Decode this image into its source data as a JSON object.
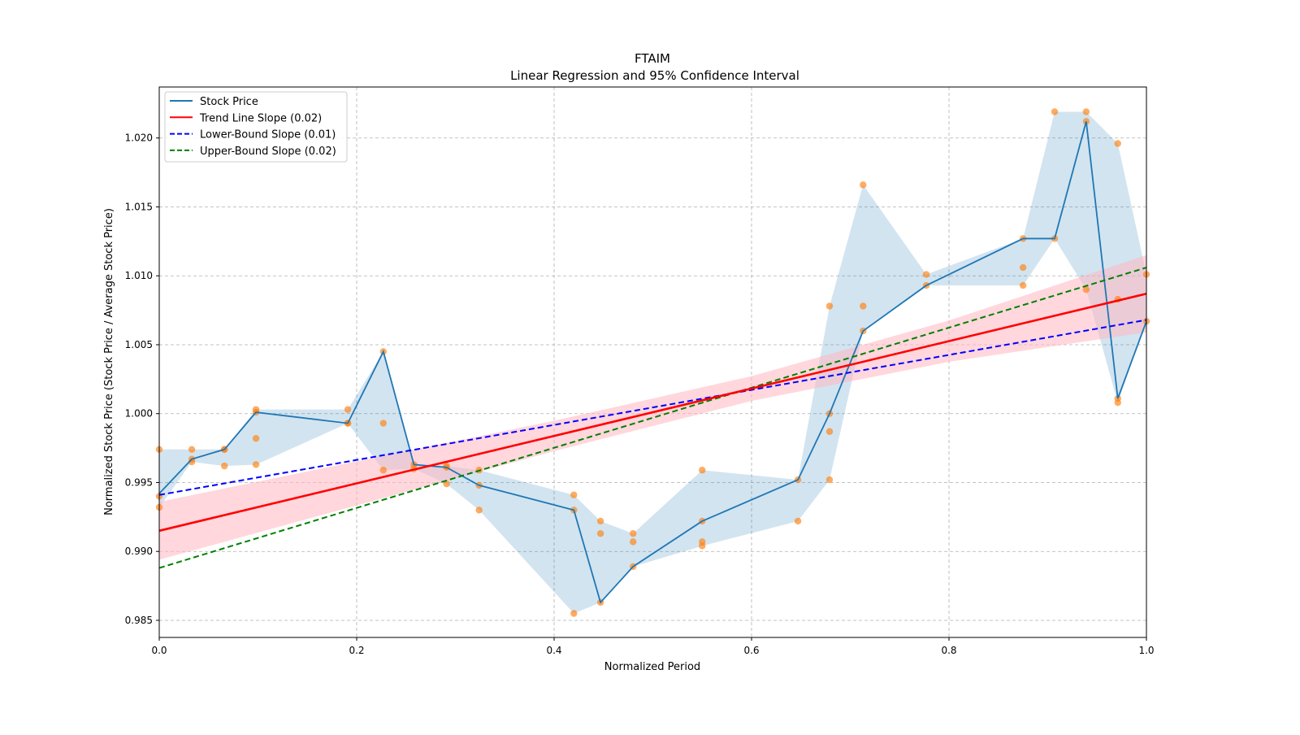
{
  "chart_data": {
    "type": "line",
    "title": "FTAIM",
    "subtitle": "Linear Regression and 95% Confidence Interval",
    "xlabel": "Normalized Period",
    "ylabel": "Normalized Stock Price (Stock Price / Average Stock Price)",
    "xlim": [
      0,
      1
    ],
    "ylim": [
      0.98376,
      1.0237
    ],
    "xticks": [
      0.0,
      0.2,
      0.4,
      0.6,
      0.8,
      1.0
    ],
    "xtick_labels": [
      "0.0",
      "0.2",
      "0.4",
      "0.6",
      "0.8",
      "1.0"
    ],
    "yticks": [
      0.985,
      0.99,
      0.995,
      1.0,
      1.005,
      1.01,
      1.015,
      1.02
    ],
    "ytick_labels": [
      "0.985",
      "0.990",
      "0.995",
      "1.000",
      "1.005",
      "1.010",
      "1.015",
      "1.020"
    ],
    "grid": true,
    "legend_position": "top-left",
    "legend": [
      {
        "label": "Stock Price",
        "color": "#1f77b4",
        "style": "solid"
      },
      {
        "label": "Trend Line Slope (0.02)",
        "color": "#ff0000",
        "style": "solid"
      },
      {
        "label": "Lower-Bound Slope (0.01)",
        "color": "#0000ff",
        "style": "dashed"
      },
      {
        "label": "Upper-Bound Slope (0.02)",
        "color": "#008000",
        "style": "dashed"
      }
    ],
    "stock_price": {
      "x": [
        0,
        0.033,
        0.066,
        0.098,
        0.191,
        0.227,
        0.258,
        0.291,
        0.324,
        0.42,
        0.447,
        0.48,
        0.55,
        0.647,
        0.679,
        0.713,
        0.777,
        0.875,
        0.907,
        0.939,
        0.971,
        1.0
      ],
      "y": [
        0.9942,
        0.9967,
        0.9974,
        1.0001,
        0.9993,
        1.0045,
        0.9963,
        0.9961,
        0.9948,
        0.993,
        0.9863,
        0.9889,
        0.9922,
        0.9952,
        1.0,
        1.006,
        1.0093,
        1.0127,
        1.0127,
        1.0212,
        1.0011,
        1.0067
      ]
    },
    "scatter": [
      [
        0,
        [
          0.9974,
          0.994,
          0.9932
        ]
      ],
      [
        0.033,
        [
          0.9974,
          0.9967,
          0.9965
        ]
      ],
      [
        0.066,
        [
          0.9974,
          0.9974,
          0.9962
        ]
      ],
      [
        0.098,
        [
          1.0003,
          1.0001,
          0.9982,
          0.9963
        ]
      ],
      [
        0.191,
        [
          1.0003,
          0.9993,
          0.9993
        ]
      ],
      [
        0.227,
        [
          1.0045,
          0.9993,
          0.9959
        ]
      ],
      [
        0.258,
        [
          0.9963,
          0.996
        ]
      ],
      [
        0.291,
        [
          0.9962,
          0.9961,
          0.9949
        ]
      ],
      [
        0.324,
        [
          0.9959,
          0.9948,
          0.993
        ]
      ],
      [
        0.42,
        [
          0.9941,
          0.993,
          0.9855
        ]
      ],
      [
        0.447,
        [
          0.9922,
          0.9913,
          0.9863
        ]
      ],
      [
        0.48,
        [
          0.9913,
          0.9907,
          0.9889
        ]
      ],
      [
        0.55,
        [
          0.9959,
          0.9922,
          0.9907,
          0.9904
        ]
      ],
      [
        0.647,
        [
          0.9952,
          0.9922
        ]
      ],
      [
        0.679,
        [
          1.0078,
          1.0,
          0.9987,
          0.9952
        ]
      ],
      [
        0.713,
        [
          1.0166,
          1.0078,
          1.006
        ]
      ],
      [
        0.777,
        [
          1.0101,
          1.0093
        ]
      ],
      [
        0.875,
        [
          1.0127,
          1.0106,
          1.0093
        ]
      ],
      [
        0.907,
        [
          1.0219,
          1.0127
        ]
      ],
      [
        0.939,
        [
          1.0219,
          1.0212,
          1.009
        ]
      ],
      [
        0.971,
        [
          1.0196,
          1.0083,
          1.0011,
          1.0008
        ]
      ],
      [
        1.0,
        [
          1.0101,
          1.0067
        ]
      ]
    ],
    "trend_line": {
      "x": [
        0,
        1
      ],
      "y": [
        0.9915,
        1.0087
      ]
    },
    "lower_bound_line": {
      "x": [
        0,
        1
      ],
      "y": [
        0.9941,
        1.0068
      ]
    },
    "upper_bound_line": {
      "x": [
        0,
        1
      ],
      "y": [
        0.9888,
        1.0106
      ]
    },
    "confidence_band": {
      "x": [
        0,
        0.2,
        0.4,
        0.6,
        0.8,
        1.0
      ],
      "lower": [
        0.9894,
        0.99334,
        0.99728,
        1.00092,
        1.00376,
        1.0059
      ],
      "upper": [
        0.9936,
        0.99654,
        0.99948,
        1.00272,
        1.00676,
        1.0115
      ]
    },
    "colors": {
      "band": "#1f77b4",
      "ci": "#ffb6c1",
      "scatter": "#ff7f0e"
    }
  }
}
